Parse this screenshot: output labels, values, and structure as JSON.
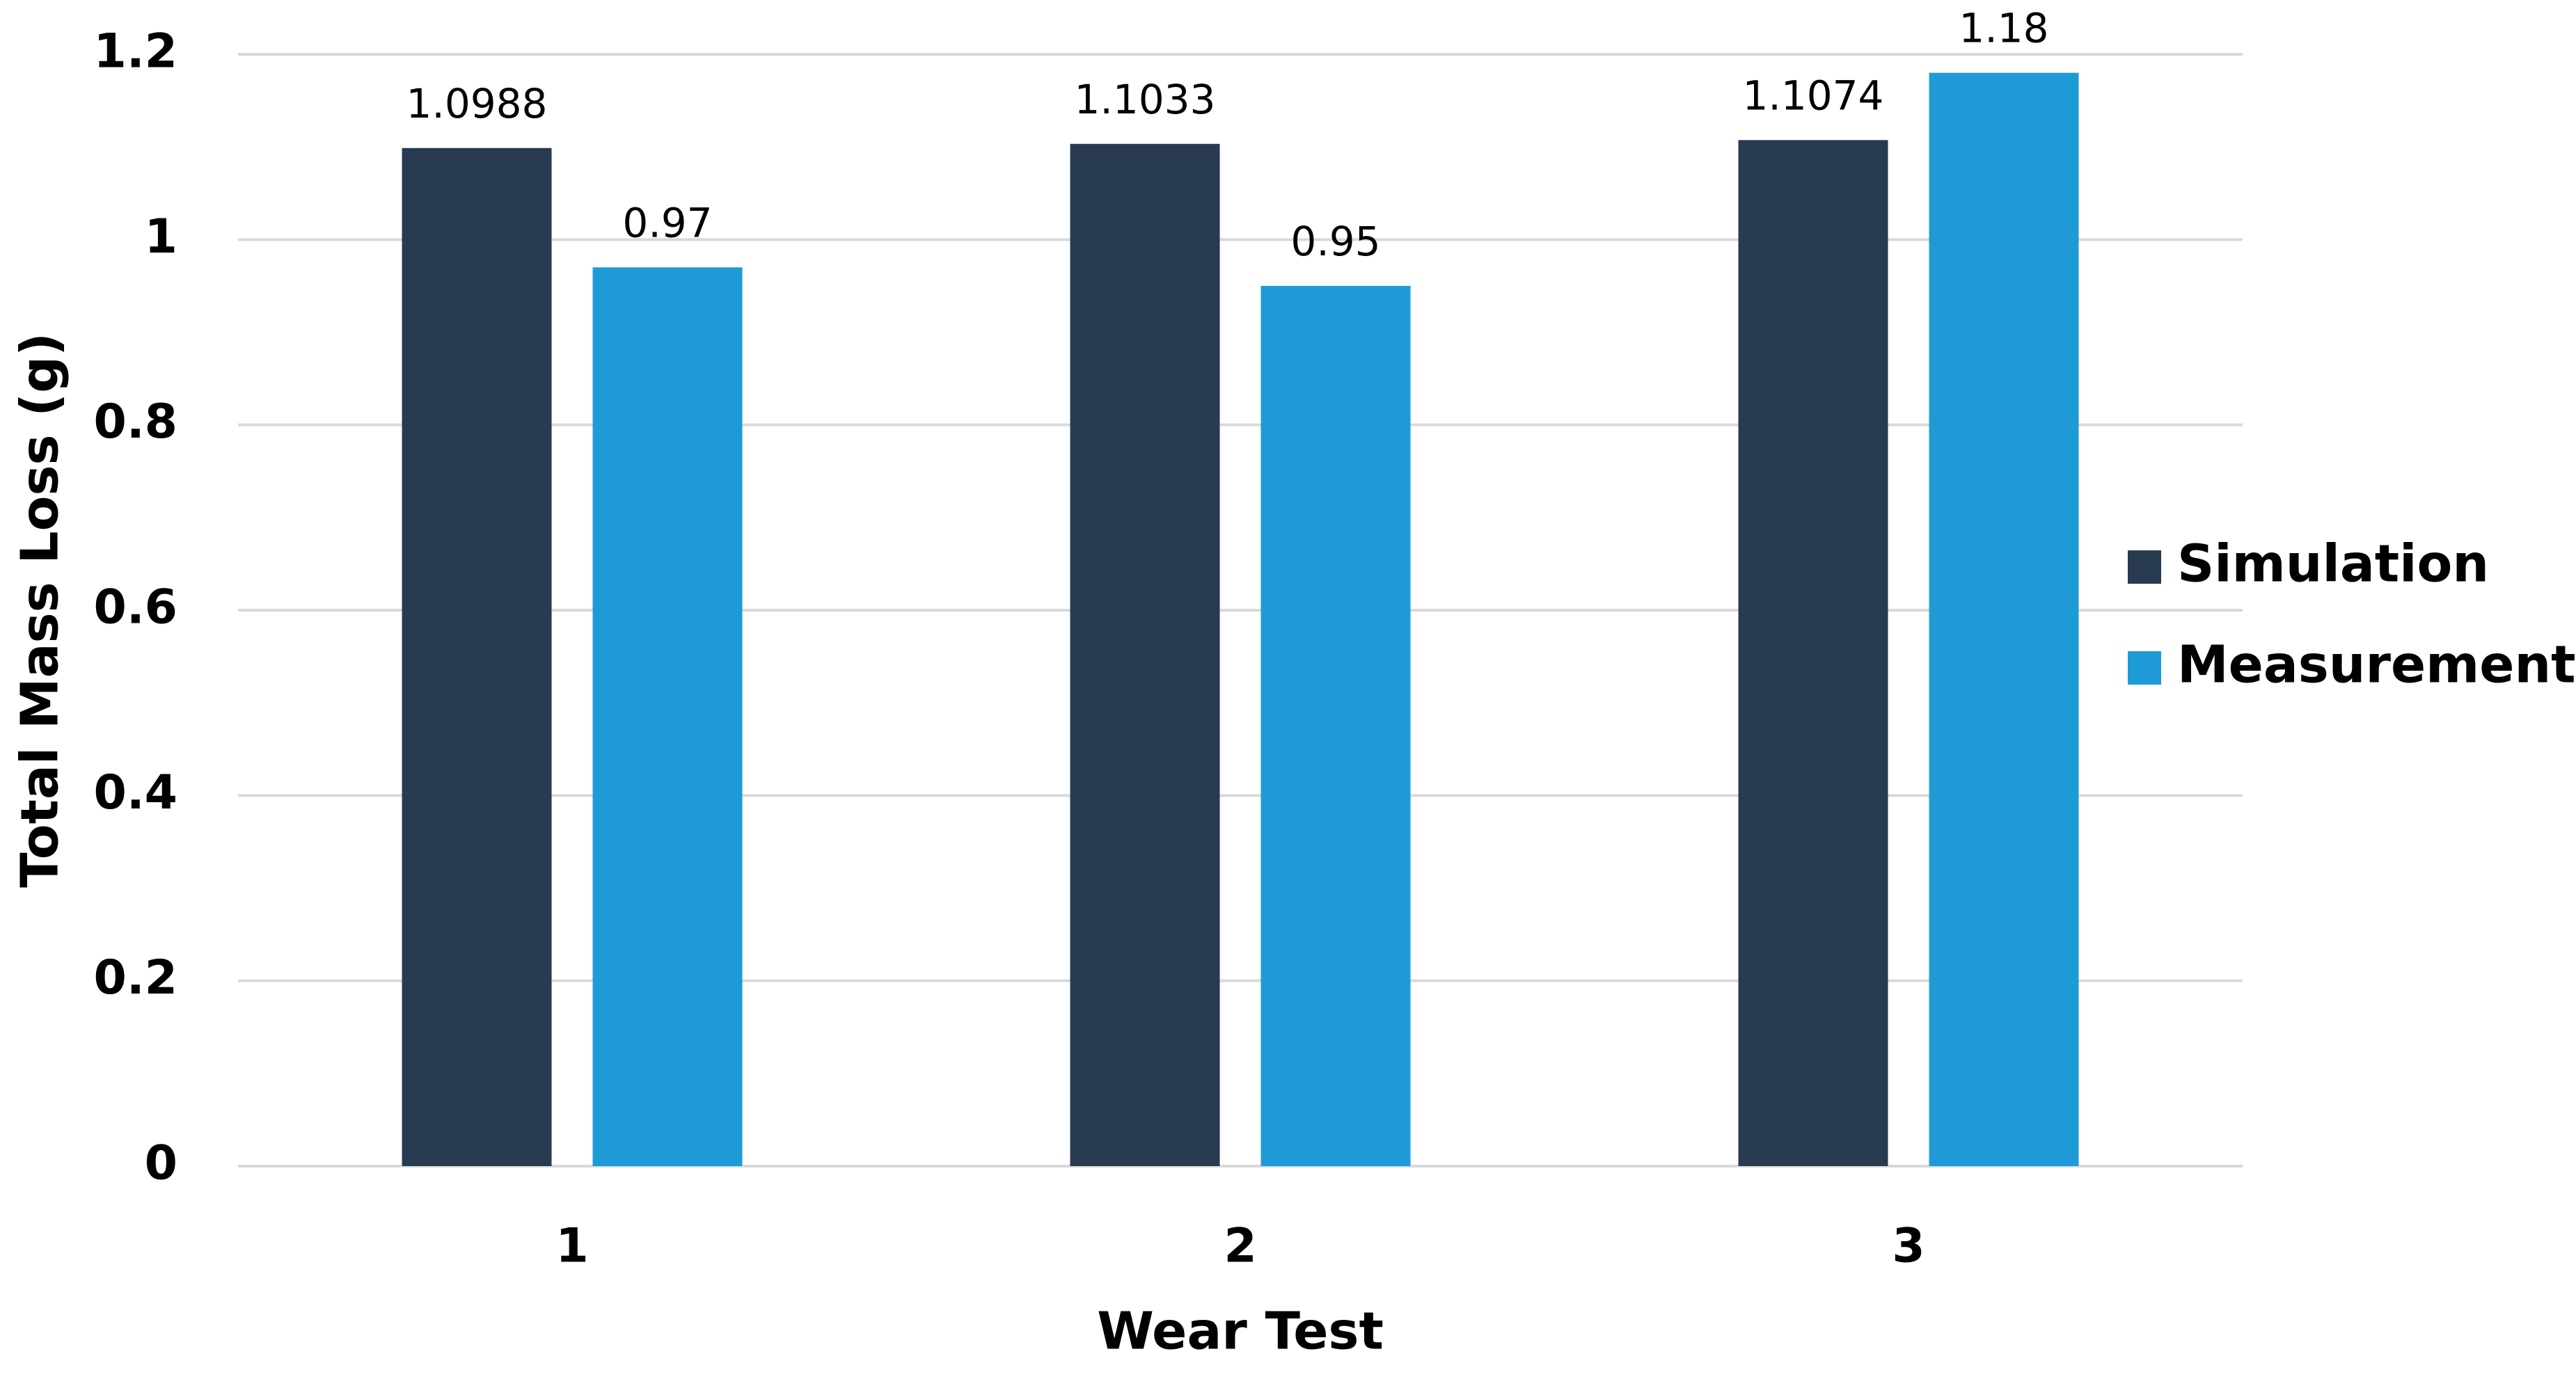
{
  "chart_data": {
    "type": "bar",
    "x_label": "Wear Test",
    "y_label": "Total Mass Loss (g)",
    "categories": [
      "1",
      "2",
      "3"
    ],
    "series": [
      {
        "name": "Simulation",
        "color": "#283b50",
        "values": [
          1.0988,
          1.1033,
          1.1074
        ]
      },
      {
        "name": "Measurement",
        "color": "#1e9bd7",
        "values": [
          0.97,
          0.95,
          1.18
        ]
      }
    ],
    "ylim": [
      0,
      1.2
    ],
    "yticks": [
      0,
      0.2,
      0.4,
      0.6,
      0.8,
      1,
      1.2
    ],
    "grid": true,
    "legend": "right"
  }
}
